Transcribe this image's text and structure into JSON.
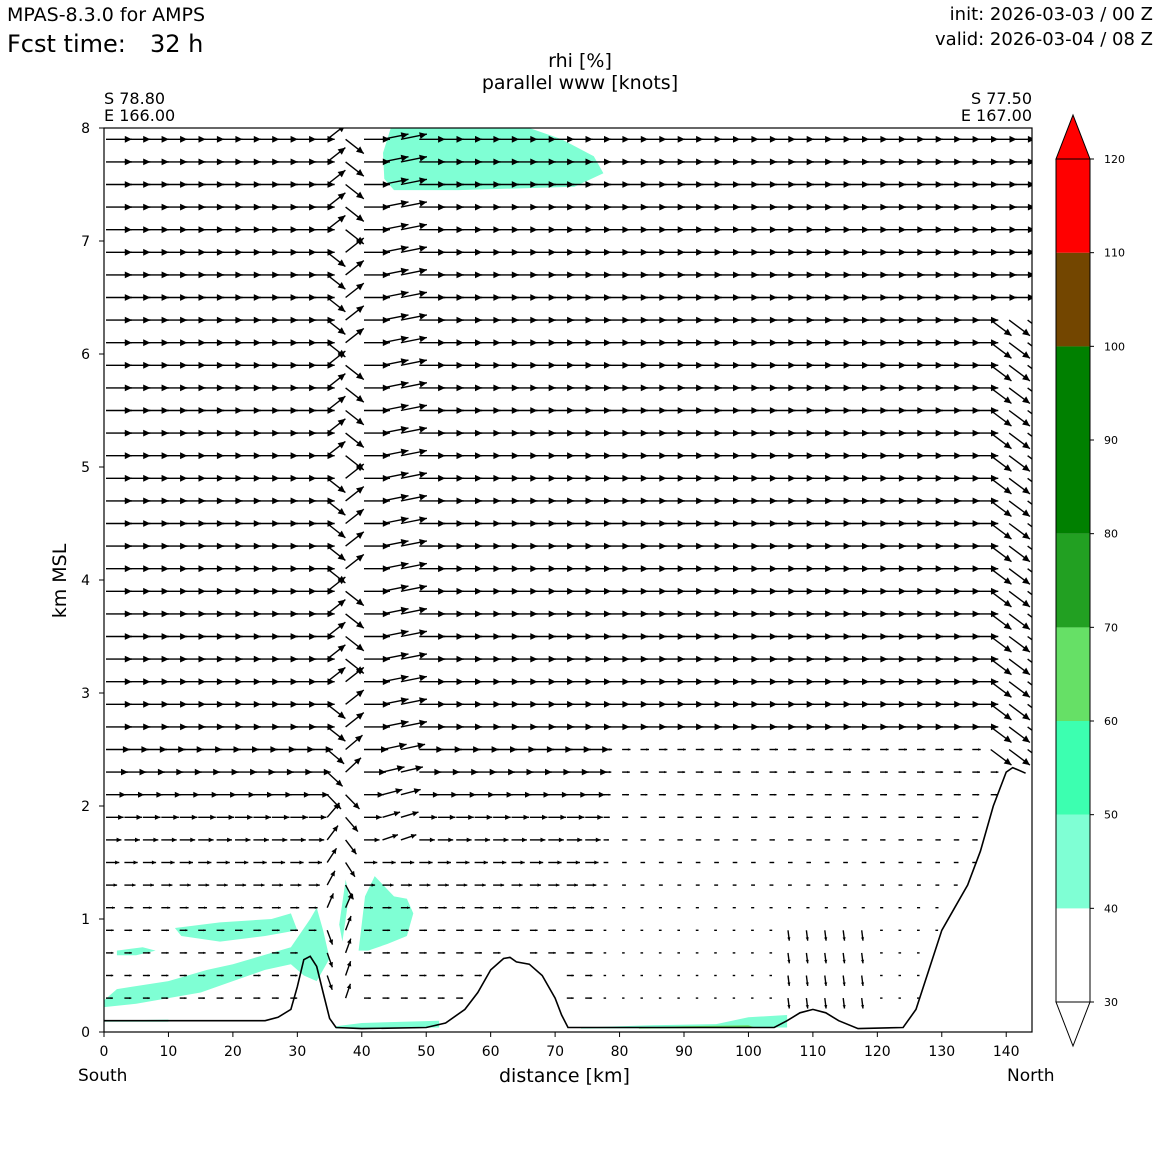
{
  "header": {
    "model": "MPAS-8.3.0 for AMPS",
    "fcst_label": "Fcst time:",
    "fcst_value": "32 h",
    "init": "init: 2026-03-03 / 00 Z",
    "valid": "valid: 2026-03-04 / 08 Z"
  },
  "chart_data": {
    "type": "cross-section",
    "title_line1": "rhi [%]",
    "title_line2": "parallel www [knots]",
    "xlabel": "distance [km]",
    "ylabel": "km MSL",
    "xlim": [
      0,
      144
    ],
    "ylim": [
      0,
      8
    ],
    "xticks": [
      0,
      10,
      20,
      30,
      40,
      50,
      60,
      70,
      80,
      90,
      100,
      110,
      120,
      130,
      140
    ],
    "yticks": [
      0,
      1,
      2,
      3,
      4,
      5,
      6,
      7,
      8
    ],
    "left_endpoint": {
      "lat": "S 78.80",
      "lon": "E 166.00",
      "side": "South"
    },
    "right_endpoint": {
      "lat": "S 77.50",
      "lon": "E 167.00",
      "side": "North"
    },
    "colorbar": {
      "levels": [
        30,
        40,
        50,
        60,
        70,
        80,
        90,
        100,
        110,
        120
      ],
      "colors": [
        "#ffffff",
        "#7fffd4",
        "#3cffb0",
        "#66e066",
        "#22a022",
        "#008000",
        "#008000",
        "#734600",
        "#ff0000"
      ],
      "extend": "both",
      "over_color": "#ff0000",
      "under_color": "#ffffff"
    },
    "terrain_km": [
      [
        0,
        0.1
      ],
      [
        25,
        0.1
      ],
      [
        27,
        0.13
      ],
      [
        29,
        0.2
      ],
      [
        30,
        0.4
      ],
      [
        31,
        0.64
      ],
      [
        32,
        0.67
      ],
      [
        33,
        0.58
      ],
      [
        34,
        0.35
      ],
      [
        35,
        0.12
      ],
      [
        36,
        0.04
      ],
      [
        40,
        0.03
      ],
      [
        50,
        0.04
      ],
      [
        53,
        0.08
      ],
      [
        56,
        0.2
      ],
      [
        58,
        0.35
      ],
      [
        60,
        0.55
      ],
      [
        62,
        0.65
      ],
      [
        63,
        0.66
      ],
      [
        64,
        0.62
      ],
      [
        66,
        0.6
      ],
      [
        68,
        0.5
      ],
      [
        70,
        0.3
      ],
      [
        71,
        0.15
      ],
      [
        72,
        0.04
      ],
      [
        104,
        0.04
      ],
      [
        106,
        0.1
      ],
      [
        108,
        0.17
      ],
      [
        110,
        0.2
      ],
      [
        112,
        0.17
      ],
      [
        114,
        0.1
      ],
      [
        117,
        0.03
      ],
      [
        124,
        0.04
      ],
      [
        126,
        0.2
      ],
      [
        128,
        0.55
      ],
      [
        130,
        0.9
      ],
      [
        132,
        1.1
      ],
      [
        134,
        1.3
      ],
      [
        136,
        1.6
      ],
      [
        138,
        2.0
      ],
      [
        140,
        2.3
      ],
      [
        141,
        2.34
      ],
      [
        143,
        2.29
      ]
    ],
    "rh_regions": [
      {
        "level": 40,
        "points": [
          [
            0,
            0.28
          ],
          [
            2,
            0.38
          ],
          [
            10,
            0.45
          ],
          [
            16,
            0.55
          ],
          [
            20,
            0.6
          ],
          [
            26,
            0.7
          ],
          [
            29,
            0.75
          ],
          [
            32,
            1.0
          ],
          [
            33,
            1.1
          ],
          [
            34,
            0.9
          ],
          [
            35,
            0.65
          ],
          [
            33,
            0.45
          ],
          [
            31,
            0.5
          ],
          [
            29,
            0.6
          ],
          [
            25,
            0.55
          ],
          [
            20,
            0.45
          ],
          [
            15,
            0.35
          ],
          [
            10,
            0.3
          ],
          [
            5,
            0.25
          ],
          [
            0,
            0.22
          ]
        ]
      },
      {
        "level": 40,
        "points": [
          [
            11,
            0.92
          ],
          [
            18,
            0.97
          ],
          [
            26,
            1.0
          ],
          [
            29,
            1.05
          ],
          [
            30,
            0.9
          ],
          [
            25,
            0.85
          ],
          [
            18,
            0.8
          ],
          [
            12,
            0.85
          ]
        ]
      },
      {
        "level": 40,
        "points": [
          [
            2,
            0.72
          ],
          [
            6,
            0.75
          ],
          [
            8,
            0.72
          ],
          [
            5,
            0.68
          ],
          [
            2,
            0.68
          ]
        ]
      },
      {
        "level": 40,
        "points": [
          [
            37,
            0.8
          ],
          [
            38,
            1.2
          ],
          [
            37.5,
            1.35
          ],
          [
            36.5,
            0.95
          ]
        ]
      },
      {
        "level": 40,
        "points": [
          [
            39.5,
            0.72
          ],
          [
            40.5,
            1.2
          ],
          [
            42,
            1.38
          ],
          [
            45,
            1.2
          ],
          [
            47,
            1.18
          ],
          [
            48,
            1.05
          ],
          [
            47,
            0.85
          ],
          [
            44,
            0.78
          ],
          [
            41,
            0.72
          ]
        ]
      },
      {
        "level": 40,
        "points": [
          [
            43.5,
            7.55
          ],
          [
            45,
            7.45
          ],
          [
            55,
            7.45
          ],
          [
            73,
            7.48
          ],
          [
            77.5,
            7.6
          ],
          [
            76,
            7.75
          ],
          [
            71,
            7.9
          ],
          [
            66,
            8.0
          ],
          [
            44.5,
            8.0
          ],
          [
            43.3,
            7.78
          ]
        ]
      },
      {
        "level": 40,
        "points": [
          [
            36,
            0.05
          ],
          [
            40,
            0.08
          ],
          [
            52,
            0.1
          ],
          [
            52,
            0.04
          ],
          [
            36,
            0.03
          ]
        ]
      },
      {
        "level": 40,
        "points": [
          [
            74,
            0.04
          ],
          [
            85,
            0.06
          ],
          [
            95,
            0.07
          ],
          [
            100,
            0.13
          ],
          [
            106,
            0.15
          ],
          [
            106,
            0.04
          ],
          [
            74,
            0.03
          ]
        ]
      },
      {
        "level": 40,
        "points": [
          [
            0,
            0.1
          ],
          [
            10,
            0.11
          ],
          [
            10,
            0.09
          ],
          [
            0,
            0.09
          ]
        ]
      },
      {
        "level": 60,
        "points": [
          [
            83,
            0.04
          ],
          [
            90,
            0.05
          ],
          [
            100,
            0.06
          ],
          [
            101,
            0.04
          ],
          [
            83,
            0.03
          ]
        ]
      }
    ],
    "wind_field_note": "parallel wind vectors: strong westerly (left-to-right) flow above 2 km, weak flow near surface, strong downslope jet near x=34-38 km and at x=140-144 km"
  }
}
